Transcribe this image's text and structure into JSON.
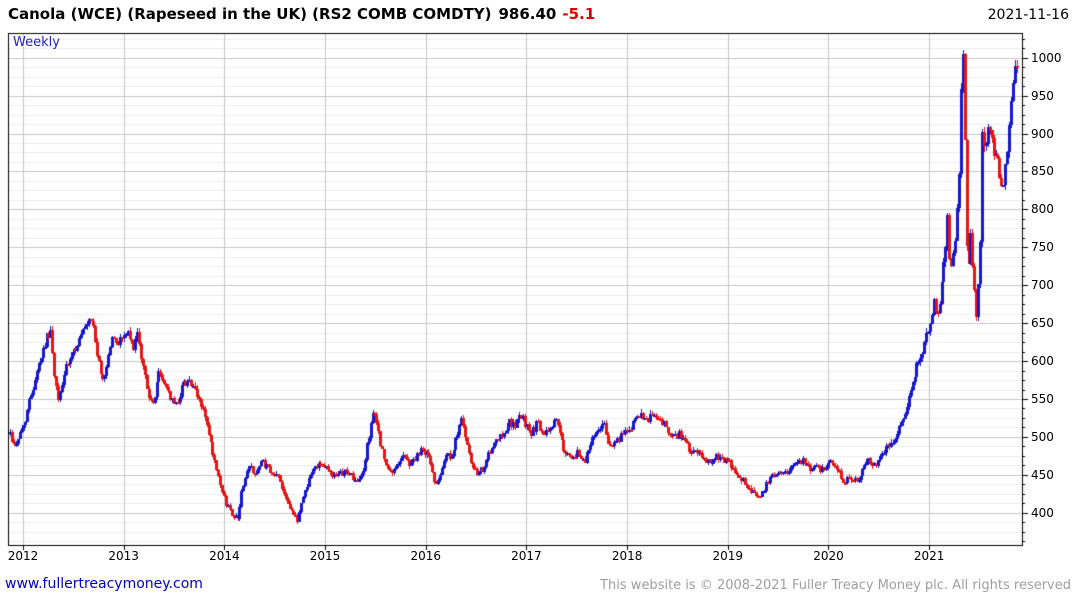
{
  "header": {
    "title": "Canola (WCE) (Rapeseed in the UK) (RS2 COMB COMDTY)",
    "last_price": "986.40",
    "change": "-5.1",
    "date": "2021-11-16"
  },
  "chart": {
    "frequency_label": "Weekly"
  },
  "footer": {
    "site_link": "www.fullertreacymoney.com",
    "copyright": "This website is © 2008-2021 Fuller Treacy Money plc. All rights reserved"
  },
  "chart_data": {
    "type": "candlestick",
    "frequency": "weekly",
    "title": "Canola (WCE) (Rapeseed in the UK) (RS2 COMB COMDTY)",
    "last_price": 986.4,
    "change": -5.1,
    "as_of_date": "2021-11-16",
    "x_ticks": [
      2012,
      2013,
      2014,
      2015,
      2016,
      2017,
      2018,
      2019,
      2020,
      2021
    ],
    "y_ticks": [
      400,
      450,
      500,
      550,
      600,
      650,
      700,
      750,
      800,
      850,
      900,
      950,
      1000
    ],
    "y_minor_step": 12.5,
    "ylim": [
      357.5,
      1032.5
    ],
    "xlim": [
      2011.851,
      2021.922
    ],
    "grid": true,
    "legend_position": "none",
    "y_axis_side": "right",
    "colors": {
      "up": "#1717ce",
      "down": "#e51515",
      "grid_minor": "#ececec",
      "grid_major": "#c6c6c6",
      "axis": "#000000",
      "freq_label": "#2323cc"
    },
    "price_path": [
      [
        2011.87,
        505
      ],
      [
        2011.91,
        488
      ],
      [
        2011.95,
        500
      ],
      [
        2012.0,
        512
      ],
      [
        2012.05,
        540
      ],
      [
        2012.13,
        585
      ],
      [
        2012.21,
        622
      ],
      [
        2012.27,
        643
      ],
      [
        2012.31,
        578
      ],
      [
        2012.35,
        547
      ],
      [
        2012.41,
        585
      ],
      [
        2012.49,
        608
      ],
      [
        2012.57,
        632
      ],
      [
        2012.65,
        648
      ],
      [
        2012.68,
        654
      ],
      [
        2012.72,
        622
      ],
      [
        2012.76,
        585
      ],
      [
        2012.8,
        575
      ],
      [
        2012.88,
        630
      ],
      [
        2012.94,
        625
      ],
      [
        2013.03,
        638
      ],
      [
        2013.09,
        618
      ],
      [
        2013.13,
        635
      ],
      [
        2013.19,
        592
      ],
      [
        2013.24,
        562
      ],
      [
        2013.28,
        536
      ],
      [
        2013.34,
        584
      ],
      [
        2013.41,
        570
      ],
      [
        2013.48,
        546
      ],
      [
        2013.52,
        542
      ],
      [
        2013.58,
        568
      ],
      [
        2013.64,
        577
      ],
      [
        2013.71,
        558
      ],
      [
        2013.79,
        535
      ],
      [
        2013.86,
        490
      ],
      [
        2013.93,
        448
      ],
      [
        2013.99,
        420
      ],
      [
        2014.06,
        402
      ],
      [
        2014.125,
        392
      ],
      [
        2014.19,
        440
      ],
      [
        2014.25,
        462
      ],
      [
        2014.31,
        452
      ],
      [
        2014.37,
        468
      ],
      [
        2014.43,
        458
      ],
      [
        2014.49,
        445
      ],
      [
        2014.51,
        455
      ],
      [
        2014.58,
        430
      ],
      [
        2014.65,
        408
      ],
      [
        2014.72,
        388
      ],
      [
        2014.76,
        412
      ],
      [
        2014.82,
        438
      ],
      [
        2014.88,
        458
      ],
      [
        2014.94,
        468
      ],
      [
        2015.0,
        460
      ],
      [
        2015.06,
        452
      ],
      [
        2015.12,
        446
      ],
      [
        2015.18,
        455
      ],
      [
        2015.25,
        452
      ],
      [
        2015.32,
        438
      ],
      [
        2015.37,
        452
      ],
      [
        2015.43,
        500
      ],
      [
        2015.47,
        534
      ],
      [
        2015.52,
        512
      ],
      [
        2015.57,
        478
      ],
      [
        2015.62,
        455
      ],
      [
        2015.66,
        450
      ],
      [
        2015.72,
        468
      ],
      [
        2015.78,
        475
      ],
      [
        2015.84,
        465
      ],
      [
        2015.9,
        472
      ],
      [
        2015.96,
        482
      ],
      [
        2016.02,
        478
      ],
      [
        2016.07,
        450
      ],
      [
        2016.1,
        438
      ],
      [
        2016.16,
        462
      ],
      [
        2016.2,
        478
      ],
      [
        2016.26,
        470
      ],
      [
        2016.32,
        510
      ],
      [
        2016.35,
        532
      ],
      [
        2016.39,
        498
      ],
      [
        2016.44,
        468
      ],
      [
        2016.51,
        448
      ],
      [
        2016.57,
        460
      ],
      [
        2016.64,
        480
      ],
      [
        2016.71,
        495
      ],
      [
        2016.77,
        505
      ],
      [
        2016.82,
        522
      ],
      [
        2016.88,
        512
      ],
      [
        2016.94,
        528
      ],
      [
        2017.0,
        515
      ],
      [
        2017.05,
        505
      ],
      [
        2017.11,
        518
      ],
      [
        2017.17,
        500
      ],
      [
        2017.23,
        512
      ],
      [
        2017.29,
        525
      ],
      [
        2017.35,
        492
      ],
      [
        2017.4,
        475
      ],
      [
        2017.45,
        468
      ],
      [
        2017.51,
        480
      ],
      [
        2017.57,
        467
      ],
      [
        2017.63,
        490
      ],
      [
        2017.7,
        510
      ],
      [
        2017.76,
        518
      ],
      [
        2017.81,
        495
      ],
      [
        2017.87,
        488
      ],
      [
        2017.93,
        500
      ],
      [
        2018.0,
        507
      ],
      [
        2018.07,
        520
      ],
      [
        2018.13,
        527
      ],
      [
        2018.19,
        518
      ],
      [
        2018.25,
        530
      ],
      [
        2018.31,
        524
      ],
      [
        2018.36,
        518
      ],
      [
        2018.4,
        505
      ],
      [
        2018.46,
        498
      ],
      [
        2018.52,
        505
      ],
      [
        2018.58,
        490
      ],
      [
        2018.64,
        480
      ],
      [
        2018.7,
        478
      ],
      [
        2018.76,
        470
      ],
      [
        2018.82,
        468
      ],
      [
        2018.88,
        475
      ],
      [
        2018.94,
        470
      ],
      [
        2019.01,
        465
      ],
      [
        2019.07,
        458
      ],
      [
        2019.13,
        445
      ],
      [
        2019.19,
        435
      ],
      [
        2019.25,
        428
      ],
      [
        2019.32,
        421
      ],
      [
        2019.38,
        436
      ],
      [
        2019.44,
        448
      ],
      [
        2019.5,
        455
      ],
      [
        2019.56,
        450
      ],
      [
        2019.62,
        460
      ],
      [
        2019.68,
        465
      ],
      [
        2019.74,
        468
      ],
      [
        2019.8,
        458
      ],
      [
        2019.86,
        462
      ],
      [
        2019.91,
        455
      ],
      [
        2019.97,
        462
      ],
      [
        2020.03,
        470
      ],
      [
        2020.09,
        460
      ],
      [
        2020.15,
        442
      ],
      [
        2020.21,
        448
      ],
      [
        2020.27,
        440
      ],
      [
        2020.33,
        455
      ],
      [
        2020.39,
        468
      ],
      [
        2020.45,
        462
      ],
      [
        2020.51,
        472
      ],
      [
        2020.57,
        488
      ],
      [
        2020.63,
        492
      ],
      [
        2020.69,
        510
      ],
      [
        2020.75,
        530
      ],
      [
        2020.81,
        560
      ],
      [
        2020.87,
        592
      ],
      [
        2020.93,
        615
      ],
      [
        2020.98,
        638
      ],
      [
        2021.02,
        660
      ],
      [
        2021.05,
        690
      ],
      [
        2021.07,
        648
      ],
      [
        2021.11,
        680
      ],
      [
        2021.15,
        738
      ],
      [
        2021.18,
        790
      ],
      [
        2021.21,
        712
      ],
      [
        2021.24,
        742
      ],
      [
        2021.27,
        782
      ],
      [
        2021.3,
        862
      ],
      [
        2021.32,
        1008
      ],
      [
        2021.34,
        995
      ],
      [
        2021.36,
        820
      ],
      [
        2021.38,
        700
      ],
      [
        2021.41,
        762
      ],
      [
        2021.44,
        716
      ],
      [
        2021.47,
        656
      ],
      [
        2021.5,
        726
      ],
      [
        2021.52,
        838
      ],
      [
        2021.53,
        944
      ],
      [
        2021.55,
        868
      ],
      [
        2021.58,
        900
      ],
      [
        2021.61,
        912
      ],
      [
        2021.63,
        862
      ],
      [
        2021.66,
        880
      ],
      [
        2021.69,
        855
      ],
      [
        2021.73,
        822
      ],
      [
        2021.76,
        858
      ],
      [
        2021.79,
        905
      ],
      [
        2021.82,
        950
      ],
      [
        2021.85,
        985
      ],
      [
        2021.87,
        1002
      ],
      [
        2021.883,
        986.4
      ]
    ]
  }
}
